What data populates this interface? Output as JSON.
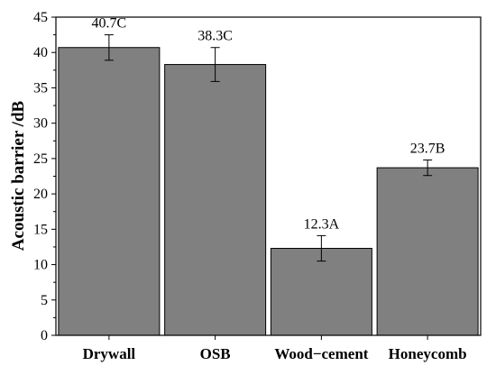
{
  "chart_data": {
    "type": "bar",
    "title": "",
    "xlabel": "",
    "ylabel": "Acoustic barrier /dB",
    "ylim": [
      0,
      45
    ],
    "yticks": [
      0,
      5,
      10,
      15,
      20,
      25,
      30,
      35,
      40,
      45
    ],
    "categories": [
      "Drywall",
      "OSB",
      "Wood−cement",
      "Honeycomb"
    ],
    "values": [
      40.7,
      38.3,
      12.3,
      23.7
    ],
    "errors": [
      1.8,
      2.4,
      1.8,
      1.1
    ],
    "labels": [
      "40.7C",
      "38.3C",
      "12.3A",
      "23.7B"
    ],
    "bar_color": "#808080",
    "grid": false,
    "legend": "none"
  }
}
